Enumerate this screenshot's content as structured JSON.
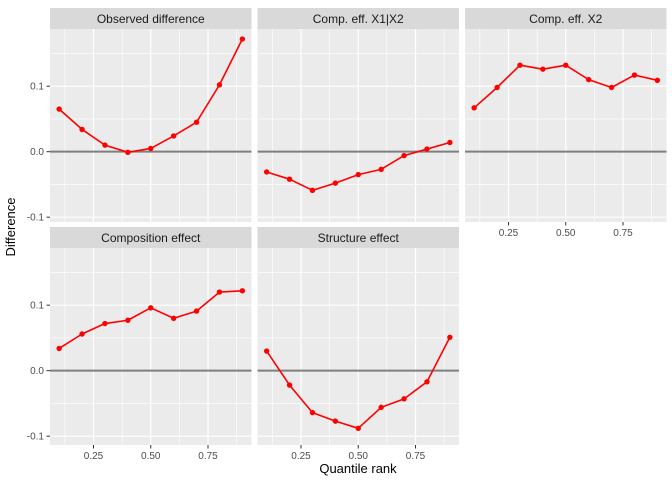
{
  "chart_data": {
    "type": "line",
    "faceted": true,
    "facet_layout": "wrap-3-columns",
    "title": "",
    "xlabel": "Quantile rank",
    "ylabel": "Difference",
    "x": [
      0.1,
      0.2,
      0.3,
      0.4,
      0.5,
      0.6,
      0.7,
      0.8,
      0.9
    ],
    "x_ticks": [
      {
        "value": 0.25,
        "label": "0.25"
      },
      {
        "value": 0.5,
        "label": "0.50"
      },
      {
        "value": 0.75,
        "label": "0.75"
      }
    ],
    "y_ticks": [
      {
        "value": -0.1,
        "label": "-0.1"
      },
      {
        "value": 0.0,
        "label": "0.0"
      },
      {
        "value": 0.1,
        "label": "0.1"
      }
    ],
    "x_minor_gridlines": [
      0.125,
      0.375,
      0.625,
      0.875
    ],
    "y_minor_gridlines": [
      -0.05,
      0.05,
      0.15
    ],
    "xlim": [
      0.06,
      0.94
    ],
    "ylim": [
      -0.113,
      0.1873
    ],
    "reference_line_y": 0,
    "legend": "none",
    "grid": "white major and minor gridlines on gray panel",
    "facets": [
      {
        "title": "Observed difference",
        "values": [
          0.065,
          0.034,
          0.01,
          -0.001,
          0.005,
          0.024,
          0.045,
          0.102,
          0.172
        ]
      },
      {
        "title": "Comp. eff. X1|X2",
        "values": [
          -0.031,
          -0.042,
          -0.059,
          -0.048,
          -0.035,
          -0.027,
          -0.006,
          0.004,
          0.014
        ]
      },
      {
        "title": "Comp. eff. X2",
        "values": [
          0.067,
          0.098,
          0.132,
          0.126,
          0.132,
          0.11,
          0.098,
          0.117,
          0.109
        ]
      },
      {
        "title": "Composition effect",
        "values": [
          0.034,
          0.056,
          0.072,
          0.077,
          0.096,
          0.08,
          0.091,
          0.12,
          0.122
        ]
      },
      {
        "title": "Structure effect",
        "values": [
          0.03,
          -0.022,
          -0.064,
          -0.077,
          -0.088,
          -0.056,
          -0.043,
          -0.017,
          0.051
        ]
      }
    ],
    "colors": {
      "series": "#ff0000",
      "panel_bg": "#ebebeb",
      "strip_bg": "#d9d9d9",
      "gridline": "#ffffff",
      "reference_line": "#7f7f7f",
      "tick_mark": "#333333",
      "tick_text": "#4d4d4d",
      "strip_text": "#1a1a1a",
      "axis_title_text": "#000000",
      "background": "#ffffff"
    }
  }
}
